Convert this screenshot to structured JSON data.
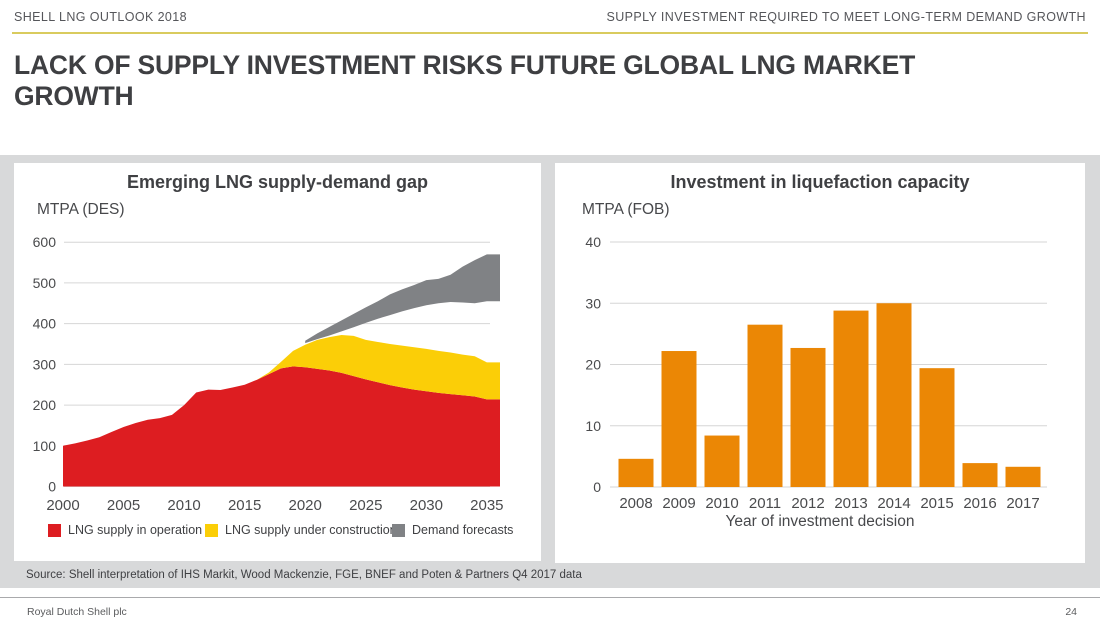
{
  "header": {
    "left": "SHELL LNG OUTLOOK 2018",
    "right": "SUPPLY INVESTMENT REQUIRED TO MEET LONG-TERM DEMAND GROWTH"
  },
  "title": "LACK OF SUPPLY INVESTMENT RISKS FUTURE GLOBAL LNG MARKET GROWTH",
  "source": "Source: Shell interpretation of IHS Markit, Wood Mackenzie, FGE, BNEF and Poten & Partners Q4 2017 data",
  "footer": {
    "left": "Royal Dutch Shell plc",
    "page": "24"
  },
  "colors": {
    "accent_rule": "#d9cb5e",
    "panel_background": "#d8d9da",
    "supply_operation_red": "#DD1D21",
    "supply_construction_yellow": "#FBCE07",
    "demand_forecast_gray": "#808285",
    "investment_orange": "#EB8705",
    "gridline": "#d6d6d6"
  },
  "chart_data": [
    {
      "type": "area",
      "title": "Emerging LNG supply-demand gap",
      "unit_label": "MTPA (DES)",
      "xlabel": "",
      "ylabel": "MTPA (DES)",
      "ylim": [
        0,
        600
      ],
      "y_ticks": [
        0,
        100,
        200,
        300,
        400,
        500,
        600
      ],
      "x_ticks": [
        2000,
        2005,
        2010,
        2015,
        2020,
        2025,
        2030,
        2035
      ],
      "grid": true,
      "legend_position": "bottom",
      "x": [
        2000,
        2001,
        2002,
        2003,
        2004,
        2005,
        2006,
        2007,
        2008,
        2009,
        2010,
        2011,
        2012,
        2013,
        2014,
        2015,
        2016,
        2017,
        2018,
        2019,
        2020,
        2021,
        2022,
        2023,
        2024,
        2025,
        2026,
        2027,
        2028,
        2029,
        2030,
        2031,
        2032,
        2033,
        2034,
        2035
      ],
      "series": [
        {
          "name": "LNG supply in operation",
          "color": "#DD1D21",
          "kind": "stacked-area",
          "values": [
            100,
            106,
            113,
            121,
            134,
            146,
            156,
            164,
            168,
            176,
            200,
            231,
            238,
            237,
            243,
            250,
            262,
            276,
            290,
            295,
            293,
            289,
            285,
            279,
            271,
            263,
            256,
            249,
            243,
            238,
            234,
            230,
            227,
            224,
            221,
            214
          ]
        },
        {
          "name": "LNG supply under construction",
          "color": "#FBCE07",
          "kind": "stacked-area",
          "values": [
            0,
            0,
            0,
            0,
            0,
            0,
            0,
            0,
            0,
            0,
            0,
            0,
            0,
            0,
            0,
            0,
            0,
            4,
            16,
            38,
            55,
            71,
            82,
            93,
            99,
            97,
            99,
            101,
            103,
            104,
            104,
            103,
            102,
            100,
            99,
            91
          ]
        },
        {
          "name": "Demand forecasts",
          "color": "#808285",
          "kind": "band",
          "band_lower": [
            null,
            null,
            null,
            null,
            null,
            null,
            null,
            null,
            null,
            null,
            null,
            null,
            null,
            null,
            null,
            null,
            null,
            null,
            null,
            null,
            352,
            362,
            371,
            381,
            391,
            402,
            412,
            421,
            430,
            438,
            445,
            450,
            453,
            452,
            450,
            455
          ],
          "band_upper": [
            null,
            null,
            null,
            null,
            null,
            null,
            null,
            null,
            null,
            null,
            null,
            null,
            null,
            null,
            null,
            null,
            null,
            null,
            null,
            null,
            358,
            376,
            392,
            408,
            424,
            440,
            455,
            472,
            484,
            495,
            507,
            510,
            520,
            540,
            556,
            570
          ]
        }
      ]
    },
    {
      "type": "bar",
      "title": "Investment in liquefaction capacity",
      "unit_label": "MTPA (FOB)",
      "xlabel": "Year of investment decision",
      "ylabel": "MTPA (FOB)",
      "ylim": [
        0,
        40
      ],
      "y_ticks": [
        0,
        10,
        20,
        30,
        40
      ],
      "grid": true,
      "bar_color": "#EB8705",
      "categories": [
        2008,
        2009,
        2010,
        2011,
        2012,
        2013,
        2014,
        2015,
        2016,
        2017
      ],
      "values": [
        4.6,
        22.2,
        8.4,
        26.5,
        22.7,
        28.8,
        30.0,
        19.4,
        3.9,
        3.3
      ]
    }
  ]
}
